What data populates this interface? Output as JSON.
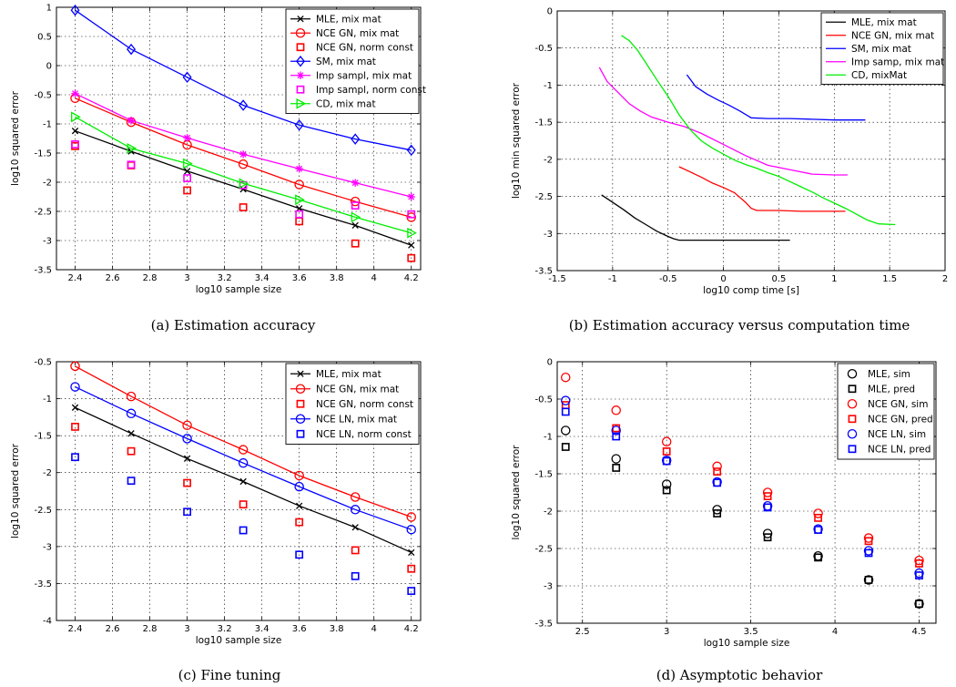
{
  "chart_data": [
    {
      "type": "line",
      "caption": "(a) Estimation accuracy",
      "xlabel": "log10 sample size",
      "ylabel": "log10 squared error",
      "xlim": [
        2.3,
        4.25
      ],
      "ylim": [
        -3.5,
        1
      ],
      "xticks": [
        2.4,
        2.6,
        2.8,
        3,
        3.2,
        3.4,
        3.6,
        3.8,
        4,
        4.2
      ],
      "yticks": [
        -3.5,
        -3,
        -2.5,
        -2,
        -1.5,
        -1,
        -0.5,
        0,
        0.5,
        1
      ],
      "grid": true,
      "legend_position": "top-right",
      "series": [
        {
          "name": "MLE, mix mat",
          "color": "#000000",
          "marker": "x",
          "line": true,
          "x": [
            2.4,
            2.7,
            3,
            3.3,
            3.6,
            3.9,
            4.2
          ],
          "y": [
            -1.12,
            -1.47,
            -1.81,
            -2.12,
            -2.45,
            -2.74,
            -3.08
          ]
        },
        {
          "name": "NCE GN, mix mat",
          "color": "#ff0000",
          "marker": "o",
          "line": true,
          "x": [
            2.4,
            2.7,
            3,
            3.3,
            3.6,
            3.9,
            4.2
          ],
          "y": [
            -0.56,
            -0.97,
            -1.36,
            -1.69,
            -2.04,
            -2.33,
            -2.6
          ]
        },
        {
          "name": "NCE GN, norm const",
          "color": "#ff0000",
          "marker": "s",
          "line": false,
          "x": [
            2.4,
            2.7,
            3,
            3.3,
            3.6,
            3.9,
            4.2
          ],
          "y": [
            -1.38,
            -1.71,
            -2.14,
            -2.43,
            -2.67,
            -3.05,
            -3.3
          ]
        },
        {
          "name": "SM, mix mat",
          "color": "#0000ff",
          "marker": "d",
          "line": true,
          "x": [
            2.4,
            2.7,
            3,
            3.3,
            3.6,
            3.9,
            4.2
          ],
          "y": [
            0.95,
            0.28,
            -0.2,
            -0.68,
            -1.02,
            -1.26,
            -1.45
          ]
        },
        {
          "name": "Imp sampl, mix mat",
          "color": "#ff00ff",
          "marker": "*",
          "line": true,
          "x": [
            2.4,
            2.7,
            3,
            3.3,
            3.6,
            3.9,
            4.2
          ],
          "y": [
            -0.48,
            -0.94,
            -1.24,
            -1.52,
            -1.77,
            -2.01,
            -2.25
          ]
        },
        {
          "name": "Imp sampl, norm const",
          "color": "#ff00ff",
          "marker": "s",
          "line": false,
          "x": [
            2.4,
            2.7,
            3,
            3.3,
            3.6,
            3.9,
            4.2
          ],
          "y": [
            -1.35,
            -1.7,
            -1.93,
            -2.05,
            -2.55,
            -2.4,
            -2.55
          ]
        },
        {
          "name": "CD, mix mat",
          "color": "#00ee00",
          "marker": ">",
          "line": true,
          "x": [
            2.4,
            2.7,
            3,
            3.3,
            3.6,
            3.9,
            4.2
          ],
          "y": [
            -0.88,
            -1.42,
            -1.68,
            -2.02,
            -2.3,
            -2.6,
            -2.87
          ]
        }
      ]
    },
    {
      "type": "line",
      "caption": "(b) Estimation accuracy versus computation time",
      "xlabel": "log10 comp time [s]",
      "ylabel": "log10 min squared error",
      "xlim": [
        -1.5,
        2
      ],
      "ylim": [
        -3.5,
        0
      ],
      "xticks": [
        -1.5,
        -1,
        -0.5,
        0,
        0.5,
        1,
        1.5,
        2
      ],
      "yticks": [
        -3.5,
        -3,
        -2.5,
        -2,
        -1.5,
        -1,
        -0.5,
        0
      ],
      "grid": true,
      "legend_position": "top-right",
      "series": [
        {
          "name": "MLE, mix mat",
          "color": "#000000",
          "x": [
            -1.1,
            -1.0,
            -0.9,
            -0.8,
            -0.7,
            -0.6,
            -0.5,
            -0.45,
            -0.4,
            -0.2,
            0,
            0.3,
            0.6
          ],
          "y": [
            -2.48,
            -2.58,
            -2.68,
            -2.79,
            -2.88,
            -2.97,
            -3.04,
            -3.07,
            -3.09,
            -3.09,
            -3.09,
            -3.09,
            -3.09
          ]
        },
        {
          "name": "NCE GN, mix mat",
          "color": "#ff0000",
          "x": [
            -0.4,
            -0.3,
            -0.2,
            -0.1,
            0,
            0.1,
            0.2,
            0.25,
            0.3,
            0.5,
            0.7,
            0.9,
            1.1
          ],
          "y": [
            -2.1,
            -2.17,
            -2.24,
            -2.32,
            -2.38,
            -2.45,
            -2.58,
            -2.66,
            -2.69,
            -2.69,
            -2.7,
            -2.7,
            -2.7
          ]
        },
        {
          "name": "SM, mix mat",
          "color": "#0000ff",
          "x": [
            -0.33,
            -0.25,
            -0.15,
            -0.05,
            0.05,
            0.15,
            0.25,
            0.4,
            0.6,
            0.8,
            1.0,
            1.28
          ],
          "y": [
            -0.86,
            -1.02,
            -1.12,
            -1.2,
            -1.27,
            -1.35,
            -1.44,
            -1.45,
            -1.45,
            -1.46,
            -1.47,
            -1.47
          ]
        },
        {
          "name": "Imp samp, mix mat",
          "color": "#ff00ff",
          "x": [
            -1.12,
            -1.05,
            -0.95,
            -0.85,
            -0.75,
            -0.65,
            -0.5,
            -0.35,
            -0.2,
            0,
            0.2,
            0.4,
            0.6,
            0.8,
            1.0,
            1.12
          ],
          "y": [
            -0.76,
            -0.95,
            -1.1,
            -1.25,
            -1.35,
            -1.43,
            -1.5,
            -1.56,
            -1.65,
            -1.8,
            -1.95,
            -2.08,
            -2.14,
            -2.2,
            -2.21,
            -2.21
          ]
        },
        {
          "name": "CD, mixMat",
          "color": "#00ee00",
          "x": [
            -0.92,
            -0.85,
            -0.78,
            -0.7,
            -0.6,
            -0.5,
            -0.4,
            -0.3,
            -0.2,
            -0.1,
            0,
            0.1,
            0.2,
            0.3,
            0.4,
            0.5,
            0.6,
            0.7,
            0.8,
            0.9,
            1.0,
            1.1,
            1.2,
            1.3,
            1.4,
            1.55
          ],
          "y": [
            -0.33,
            -0.4,
            -0.52,
            -0.7,
            -0.93,
            -1.15,
            -1.4,
            -1.6,
            -1.75,
            -1.85,
            -1.93,
            -2.01,
            -2.07,
            -2.12,
            -2.18,
            -2.23,
            -2.3,
            -2.37,
            -2.44,
            -2.52,
            -2.59,
            -2.66,
            -2.74,
            -2.82,
            -2.87,
            -2.88
          ]
        }
      ]
    },
    {
      "type": "line",
      "caption": "(c) Fine tuning",
      "xlabel": "log10 sample size",
      "ylabel": "log10 squared error",
      "xlim": [
        2.3,
        4.25
      ],
      "ylim": [
        -4,
        -0.5
      ],
      "xticks": [
        2.4,
        2.6,
        2.8,
        3,
        3.2,
        3.4,
        3.6,
        3.8,
        4,
        4.2
      ],
      "yticks": [
        -4,
        -3.5,
        -3,
        -2.5,
        -2,
        -1.5,
        -1,
        -0.5
      ],
      "grid": true,
      "legend_position": "top-right",
      "series": [
        {
          "name": "MLE, mix mat",
          "color": "#000000",
          "marker": "x",
          "line": true,
          "x": [
            2.4,
            2.7,
            3,
            3.3,
            3.6,
            3.9,
            4.2
          ],
          "y": [
            -1.12,
            -1.47,
            -1.81,
            -2.12,
            -2.45,
            -2.74,
            -3.08
          ]
        },
        {
          "name": "NCE GN, mix mat",
          "color": "#ff0000",
          "marker": "o",
          "line": true,
          "x": [
            2.4,
            2.7,
            3,
            3.3,
            3.6,
            3.9,
            4.2
          ],
          "y": [
            -0.56,
            -0.97,
            -1.36,
            -1.69,
            -2.04,
            -2.33,
            -2.6
          ]
        },
        {
          "name": "NCE GN, norm const",
          "color": "#ff0000",
          "marker": "s",
          "line": false,
          "x": [
            2.4,
            2.7,
            3,
            3.3,
            3.6,
            3.9,
            4.2
          ],
          "y": [
            -1.38,
            -1.71,
            -2.14,
            -2.43,
            -2.67,
            -3.05,
            -3.3
          ]
        },
        {
          "name": "NCE LN, mix mat",
          "color": "#0000ff",
          "marker": "o",
          "line": true,
          "x": [
            2.4,
            2.7,
            3,
            3.3,
            3.6,
            3.9,
            4.2
          ],
          "y": [
            -0.84,
            -1.2,
            -1.54,
            -1.87,
            -2.19,
            -2.5,
            -2.77
          ]
        },
        {
          "name": "NCE LN, norm const",
          "color": "#0000ff",
          "marker": "s",
          "line": false,
          "x": [
            2.4,
            2.7,
            3,
            3.3,
            3.6,
            3.9,
            4.2
          ],
          "y": [
            -1.79,
            -2.11,
            -2.53,
            -2.78,
            -3.11,
            -3.4,
            -3.6
          ]
        }
      ]
    },
    {
      "type": "scatter",
      "caption": "(d) Asymptotic behavior",
      "xlabel": "log10 sample size",
      "ylabel": "log10 squared error",
      "xlim": [
        2.35,
        4.6
      ],
      "ylim": [
        -3.5,
        0
      ],
      "xticks": [
        2.5,
        3,
        3.5,
        4,
        4.5
      ],
      "yticks": [
        -3.5,
        -3,
        -2.5,
        -2,
        -1.5,
        -1,
        -0.5,
        0
      ],
      "grid": true,
      "legend_position": "top-right",
      "series": [
        {
          "name": "MLE, sim",
          "color": "#000000",
          "marker": "o",
          "line": false,
          "x": [
            2.4,
            2.7,
            3,
            3.3,
            3.6,
            3.9,
            4.2,
            4.5
          ],
          "y": [
            -0.92,
            -1.3,
            -1.64,
            -1.98,
            -2.3,
            -2.6,
            -2.92,
            -3.24
          ]
        },
        {
          "name": "MLE, pred",
          "color": "#000000",
          "marker": "s",
          "line": false,
          "x": [
            2.4,
            2.7,
            3,
            3.3,
            3.6,
            3.9,
            4.2,
            4.5
          ],
          "y": [
            -1.14,
            -1.42,
            -1.72,
            -2.03,
            -2.35,
            -2.62,
            -2.92,
            -3.24
          ]
        },
        {
          "name": "NCE GN, sim",
          "color": "#ff0000",
          "marker": "o",
          "line": false,
          "x": [
            2.4,
            2.7,
            3,
            3.3,
            3.6,
            3.9,
            4.2,
            4.5
          ],
          "y": [
            -0.21,
            -0.65,
            -1.07,
            -1.4,
            -1.75,
            -2.03,
            -2.36,
            -2.66
          ]
        },
        {
          "name": "NCE GN, pred",
          "color": "#ff0000",
          "marker": "s",
          "line": false,
          "x": [
            2.4,
            2.7,
            3,
            3.3,
            3.6,
            3.9,
            4.2,
            4.5
          ],
          "y": [
            -0.58,
            -0.89,
            -1.2,
            -1.47,
            -1.8,
            -2.09,
            -2.4,
            -2.7
          ]
        },
        {
          "name": "NCE LN, sim",
          "color": "#0000ff",
          "marker": "o",
          "line": false,
          "x": [
            2.4,
            2.7,
            3,
            3.3,
            3.6,
            3.9,
            4.2,
            4.5
          ],
          "y": [
            -0.52,
            -0.92,
            -1.32,
            -1.61,
            -1.93,
            -2.24,
            -2.53,
            -2.83
          ]
        },
        {
          "name": "NCE LN, pred",
          "color": "#0000ff",
          "marker": "s",
          "line": false,
          "x": [
            2.4,
            2.7,
            3,
            3.3,
            3.6,
            3.9,
            4.2,
            4.5
          ],
          "y": [
            -0.67,
            -1.0,
            -1.33,
            -1.62,
            -1.95,
            -2.25,
            -2.56,
            -2.86
          ]
        }
      ]
    }
  ]
}
